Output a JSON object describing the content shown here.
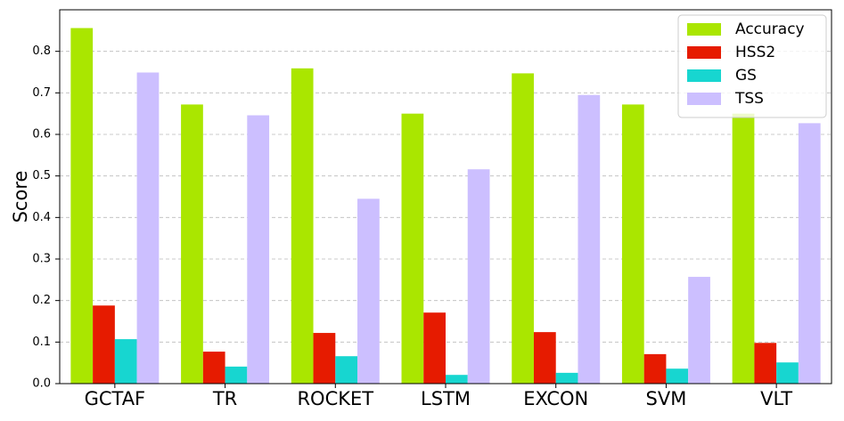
{
  "chart_data": {
    "type": "bar",
    "ylabel": "Score",
    "categories": [
      "GCTAF",
      "TR",
      "ROCKET",
      "LSTM",
      "EXCON",
      "SVM",
      "VLT"
    ],
    "series": [
      {
        "name": "Accuracy",
        "color": "#aae600",
        "values": [
          0.856,
          0.672,
          0.759,
          0.65,
          0.747,
          0.672,
          0.65
        ]
      },
      {
        "name": "HSS2",
        "color": "#e61b00",
        "values": [
          0.188,
          0.077,
          0.122,
          0.171,
          0.124,
          0.071,
          0.098
        ]
      },
      {
        "name": "GS",
        "color": "#17d6d0",
        "values": [
          0.107,
          0.041,
          0.066,
          0.021,
          0.026,
          0.036,
          0.051
        ]
      },
      {
        "name": "TSS",
        "color": "#ccbfff",
        "values": [
          0.749,
          0.646,
          0.445,
          0.516,
          0.695,
          0.257,
          0.627
        ]
      }
    ],
    "ylim": [
      0,
      0.9
    ],
    "yticks": [
      {
        "value": 0,
        "label": "0.0"
      },
      0.1,
      0.2,
      0.3,
      0.4,
      0.5,
      0.6,
      0.7,
      0.8
    ],
    "grid": true,
    "legend": "upper right"
  }
}
